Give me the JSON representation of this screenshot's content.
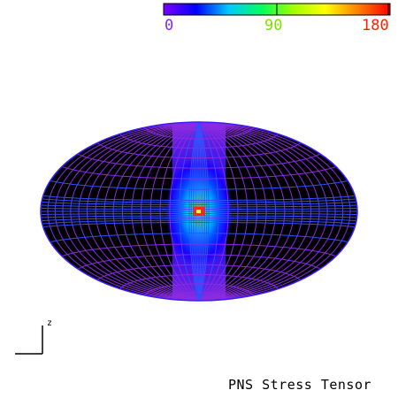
{
  "colorbar": {
    "min_label": "0",
    "mid_label": "90",
    "max_label": "180",
    "min_color": "#7a2cff",
    "mid_color": "#7fe000",
    "max_color": "#ff2000",
    "stops": [
      "#7a00ff",
      "#0000ff",
      "#00c8ff",
      "#00ff60",
      "#a0ff00",
      "#ffff00",
      "#ff8000",
      "#ff0000"
    ]
  },
  "plot": {
    "projection": "hammer-aitoff",
    "background_color": "#000000",
    "grid_color": "#8a2be2",
    "peak_color": "#ff2a00"
  },
  "axis_indicator": {
    "label": "z"
  },
  "caption": "PNS Stress Tensor"
}
